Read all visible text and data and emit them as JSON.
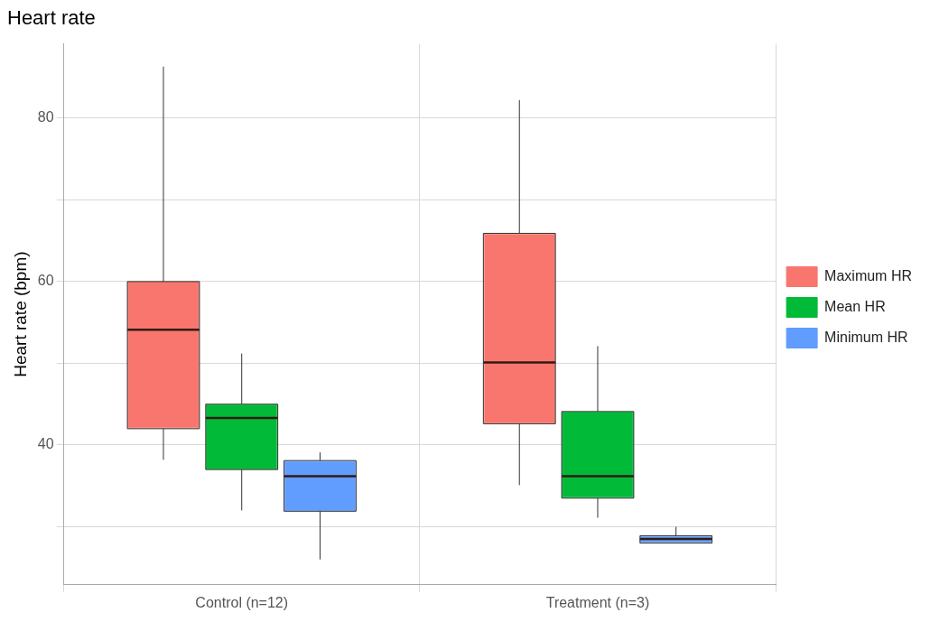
{
  "chart_data": {
    "type": "box",
    "title": "Heart rate",
    "ylabel": "Heart rate (bpm)",
    "categories": [
      "Control (n=12)",
      "Treatment (n=3)"
    ],
    "series": [
      {
        "name": "Maximum HR",
        "color": "#f8766d",
        "boxes": [
          {
            "low": 38.2,
            "q1": 42.0,
            "median": 54.1,
            "q3": 60.0,
            "high": 86.3
          },
          {
            "low": 35.1,
            "q1": 42.6,
            "median": 50.1,
            "q3": 65.9,
            "high": 82.2
          }
        ]
      },
      {
        "name": "Mean HR",
        "color": "#00ba38",
        "boxes": [
          {
            "low": 32.0,
            "q1": 37.0,
            "median": 43.3,
            "q3": 45.0,
            "high": 51.2
          },
          {
            "low": 31.1,
            "q1": 33.5,
            "median": 36.2,
            "q3": 44.1,
            "high": 52.1
          }
        ]
      },
      {
        "name": "Minimum HR",
        "color": "#619cff",
        "boxes": [
          {
            "low": 26.0,
            "q1": 31.9,
            "median": 36.2,
            "q3": 38.1,
            "high": 39.1
          },
          {
            "low": 28.0,
            "q1": 28.0,
            "median": 28.5,
            "q3": 28.9,
            "high": 30.0
          }
        ]
      }
    ],
    "ylim": [
      22.9,
      89.1
    ],
    "yticks": [
      {
        "value": 30,
        "label": null
      },
      40,
      {
        "value": 50,
        "label": null
      },
      60,
      {
        "value": 70,
        "label": null
      },
      80
    ],
    "grid": true,
    "legend": "right"
  }
}
